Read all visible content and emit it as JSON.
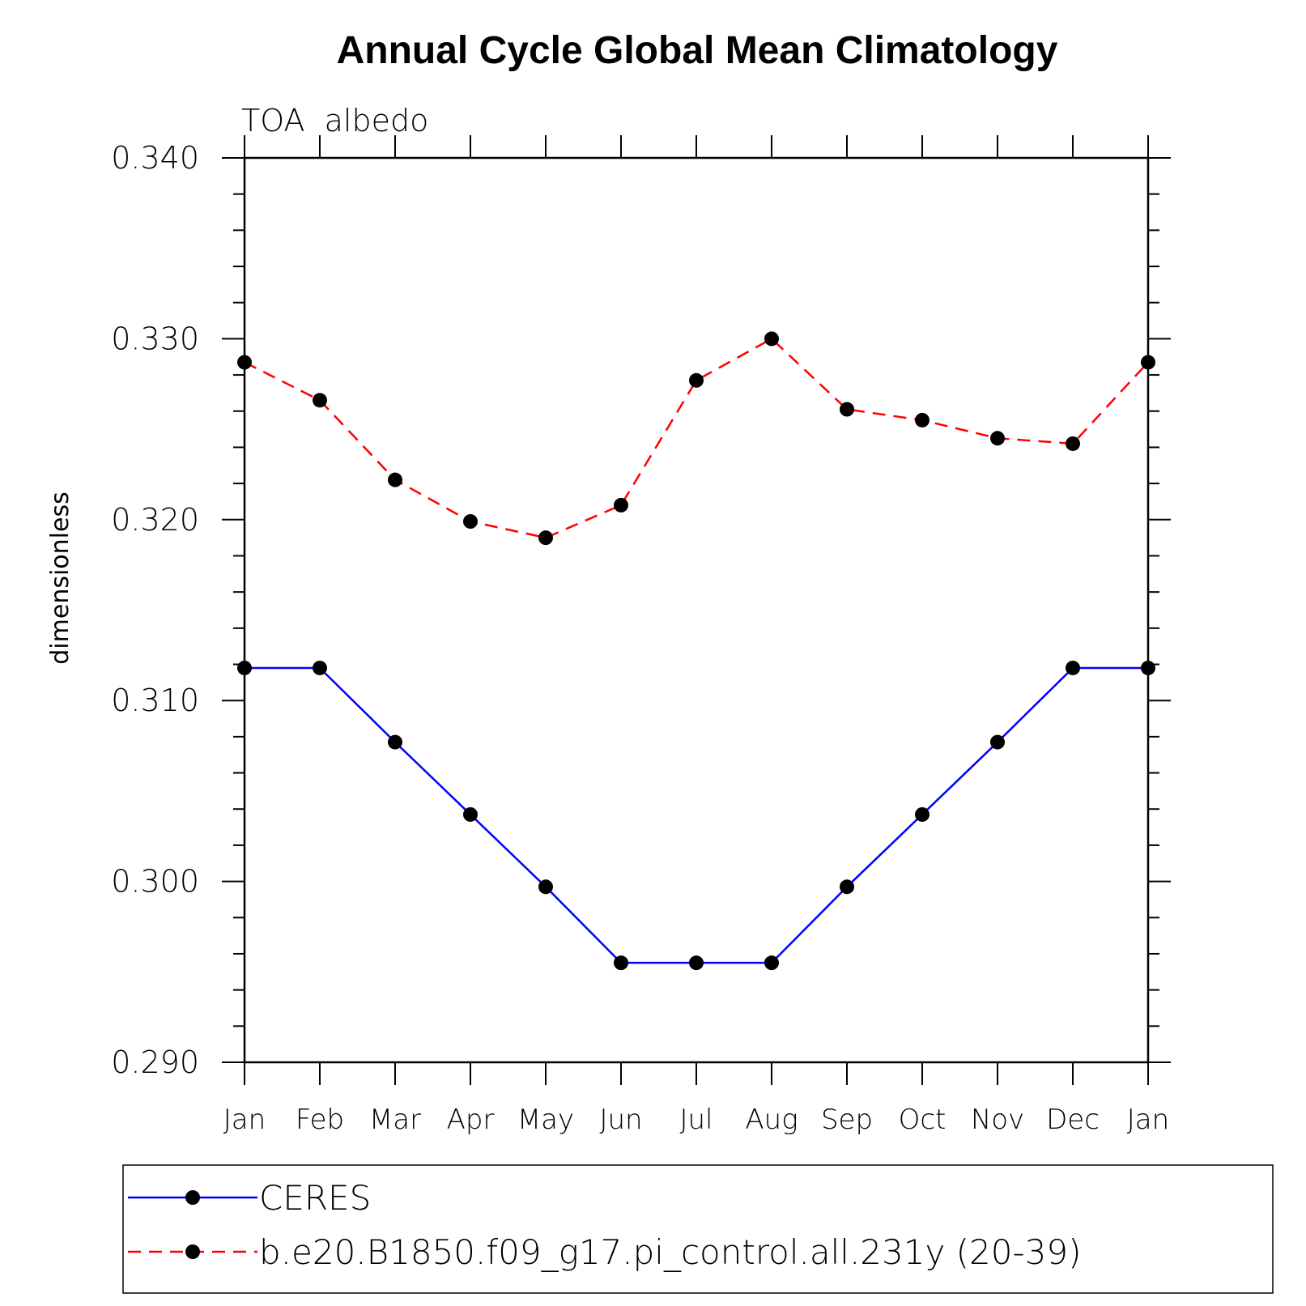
{
  "chart_data": {
    "type": "line",
    "title": "Annual Cycle Global Mean Climatology",
    "subtitle": "TOA  albedo",
    "ylabel": "dimensionless",
    "xlabel": "",
    "categories": [
      "Jan",
      "Feb",
      "Mar",
      "Apr",
      "May",
      "Jun",
      "Jul",
      "Aug",
      "Sep",
      "Oct",
      "Nov",
      "Dec",
      "Jan"
    ],
    "ylim": [
      0.29,
      0.34
    ],
    "yticks": [
      "0.290",
      "0.300",
      "0.310",
      "0.320",
      "0.330",
      "0.340"
    ],
    "grid": false,
    "legend_position": "bottom",
    "series": [
      {
        "name": "CERES",
        "color": "#0000ff",
        "line_style": "solid",
        "marker": "filled-circle",
        "values": [
          0.3118,
          0.3118,
          0.3077,
          0.3037,
          0.2997,
          0.2955,
          0.2955,
          0.2955,
          0.2997,
          0.3037,
          0.3077,
          0.3118,
          0.3118
        ]
      },
      {
        "name": "b.e20.B1850.f09_g17.pi_control.all.231y (20-39)",
        "color": "#ff0000",
        "line_style": "dashed",
        "marker": "filled-circle",
        "values": [
          0.3287,
          0.3266,
          0.3222,
          0.3199,
          0.319,
          0.3208,
          0.3277,
          0.33,
          0.3261,
          0.3255,
          0.3245,
          0.3242,
          0.3287
        ]
      }
    ]
  }
}
